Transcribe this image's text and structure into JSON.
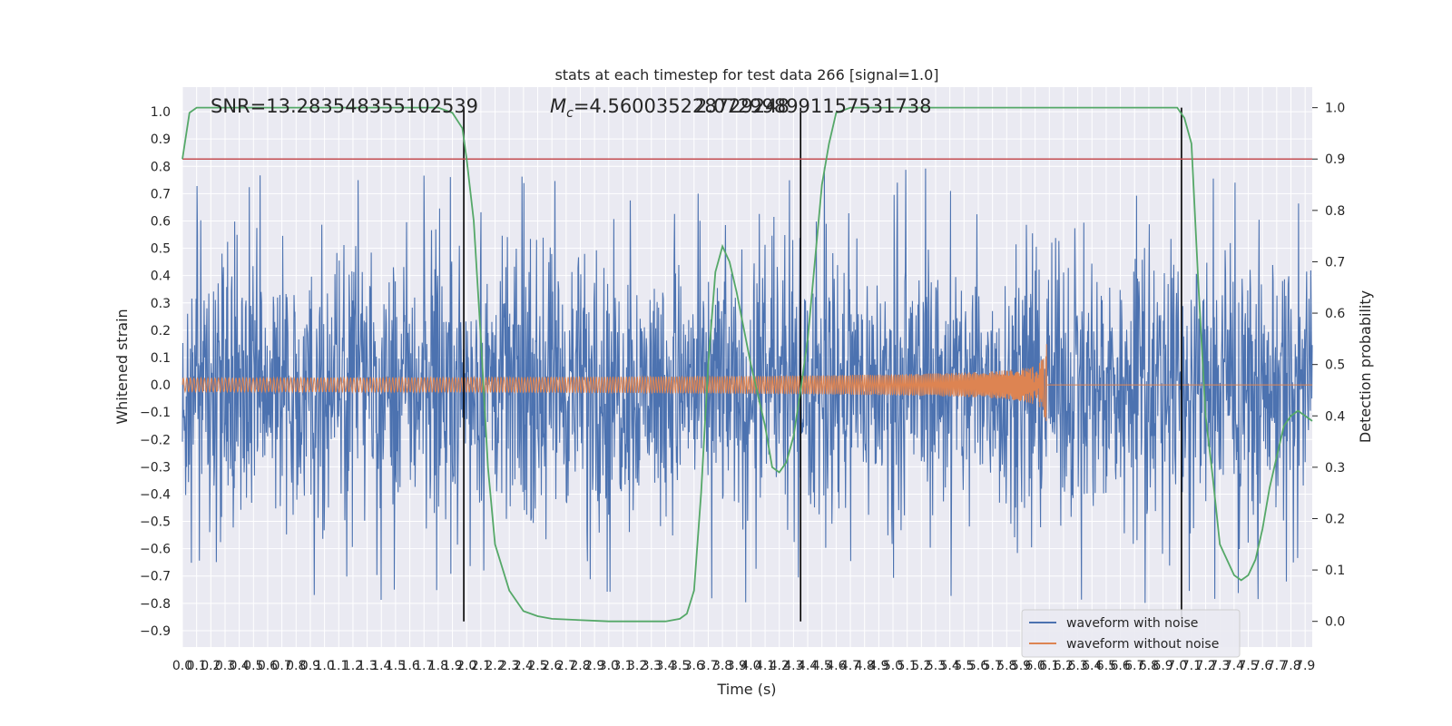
{
  "chart_data": {
    "type": "line",
    "title": "stats at each timestep for test data 266 [signal=1.0]",
    "xlabel": "Time (s)",
    "ylabel": "Whitened strain",
    "y2label": "Detection probability",
    "xlim": [
      0.0,
      7.95
    ],
    "ylim": [
      -0.96,
      1.09
    ],
    "y2lim": [
      -0.05,
      1.04
    ],
    "x_ticks": [
      "0.0",
      "0.1",
      "0.2",
      "0.3",
      "0.4",
      "0.5",
      "0.6",
      "0.7",
      "0.8",
      "0.9",
      "1.0",
      "1.1",
      "1.2",
      "1.3",
      "1.4",
      "1.5",
      "1.6",
      "1.7",
      "1.8",
      "1.9",
      "2.0",
      "2.1",
      "2.2",
      "2.3",
      "2.4",
      "2.5",
      "2.6",
      "2.7",
      "2.8",
      "2.9",
      "3.0",
      "3.1",
      "3.2",
      "3.3",
      "3.4",
      "3.5",
      "3.6",
      "3.7",
      "3.8",
      "3.9",
      "4.0",
      "4.1",
      "4.2",
      "4.3",
      "4.4",
      "4.5",
      "4.6",
      "4.7",
      "4.8",
      "4.9",
      "5.0",
      "5.1",
      "5.2",
      "5.3",
      "5.4",
      "5.5",
      "5.6",
      "5.7",
      "5.8",
      "5.9",
      "6.0",
      "6.1",
      "6.2",
      "6.3",
      "6.4",
      "6.5",
      "6.6",
      "6.7",
      "6.8",
      "6.9",
      "7.0",
      "7.1",
      "7.2",
      "7.3",
      "7.4",
      "7.5",
      "7.6",
      "7.7",
      "7.8",
      "7.9"
    ],
    "y_ticks": [
      "1.0",
      "0.9",
      "0.8",
      "0.7",
      "0.6",
      "0.5",
      "0.4",
      "0.3",
      "0.2",
      "0.1",
      "0.0",
      "−0.1",
      "−0.2",
      "−0.3",
      "−0.4",
      "−0.5",
      "−0.6",
      "−0.7",
      "−0.8",
      "−0.9"
    ],
    "y2_ticks": [
      "1.0",
      "0.9",
      "0.8",
      "0.7",
      "0.6",
      "0.5",
      "0.4",
      "0.3",
      "0.2",
      "0.1",
      "0.0"
    ],
    "annotations": {
      "snr": "SNR=13.283548355102539",
      "mc_symbol": "M",
      "mc_sub": "c",
      "mc_value": "=4.560035228729248",
      "mc_overlap": "2.072998991157531738"
    },
    "series": [
      {
        "name": "waveform with noise",
        "color": "#4c72b0",
        "envelope_typical": [
          -0.45,
          0.45
        ],
        "spike_range": [
          -0.89,
          1.0
        ]
      },
      {
        "name": "waveform without noise",
        "color": "#dd8452",
        "chirp_start_amplitude": 0.025,
        "chirp_peak_amplitude": 0.28,
        "merger_time": 6.08
      }
    ],
    "detection_probability": {
      "color": "#55a868",
      "x": [
        0.0,
        0.05,
        0.1,
        0.2,
        1.8,
        1.9,
        1.97,
        2.0,
        2.05,
        2.1,
        2.15,
        2.2,
        2.3,
        2.4,
        2.5,
        2.6,
        3.0,
        3.4,
        3.5,
        3.55,
        3.6,
        3.65,
        3.7,
        3.75,
        3.8,
        3.85,
        3.9,
        4.0,
        4.1,
        4.15,
        4.2,
        4.25,
        4.3,
        4.35,
        4.4,
        4.45,
        4.5,
        4.55,
        4.6,
        4.7,
        7.0,
        7.05,
        7.1,
        7.15,
        7.2,
        7.25,
        7.3,
        7.4,
        7.45,
        7.5,
        7.55,
        7.6,
        7.65,
        7.7,
        7.75,
        7.8,
        7.85,
        7.9,
        7.95
      ],
      "y": [
        0.9,
        0.99,
        1.0,
        1.0,
        1.0,
        0.99,
        0.96,
        0.9,
        0.78,
        0.55,
        0.3,
        0.15,
        0.06,
        0.02,
        0.01,
        0.005,
        0.0,
        0.0,
        0.005,
        0.015,
        0.06,
        0.25,
        0.5,
        0.68,
        0.73,
        0.7,
        0.64,
        0.5,
        0.38,
        0.3,
        0.29,
        0.31,
        0.36,
        0.45,
        0.55,
        0.7,
        0.85,
        0.93,
        0.99,
        1.0,
        1.0,
        0.98,
        0.93,
        0.65,
        0.4,
        0.28,
        0.15,
        0.09,
        0.08,
        0.09,
        0.12,
        0.18,
        0.26,
        0.32,
        0.38,
        0.4,
        0.41,
        0.4,
        0.39
      ]
    },
    "threshold": {
      "y": 0.9,
      "color": "#c44e52"
    },
    "vertical_markers": [
      1.98,
      4.35,
      7.03
    ],
    "grid": true,
    "legend_position": "bottom-right"
  }
}
